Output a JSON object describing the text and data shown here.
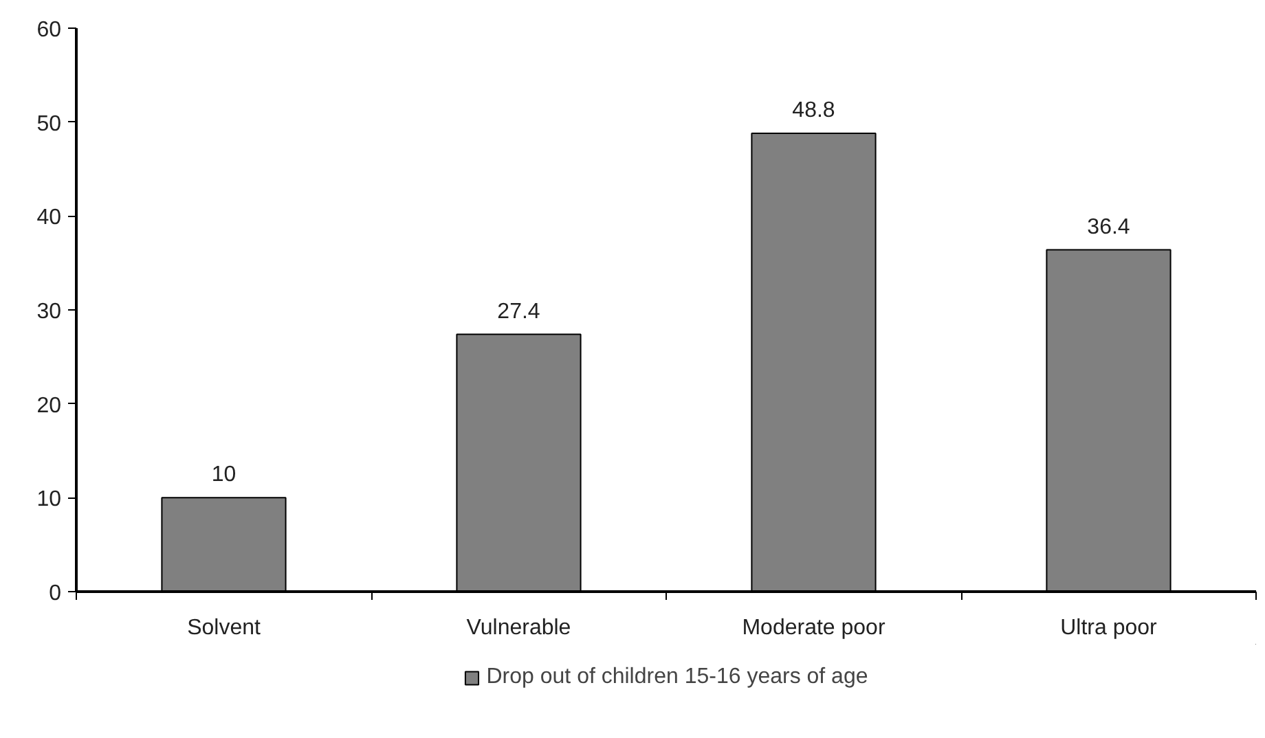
{
  "chart_data": {
    "type": "bar",
    "categories": [
      "Solvent",
      "Vulnerable",
      "Moderate poor",
      "Ultra poor"
    ],
    "series": [
      {
        "name": "Drop out of children 15-16 years of age",
        "color": "#808080",
        "values": [
          10,
          27.4,
          48.8,
          36.4
        ]
      }
    ],
    "ylim": [
      0,
      60
    ],
    "yticks": [
      0,
      10,
      20,
      30,
      40,
      50,
      60
    ],
    "data_labels": true,
    "grid": false,
    "legend": "bottom"
  }
}
